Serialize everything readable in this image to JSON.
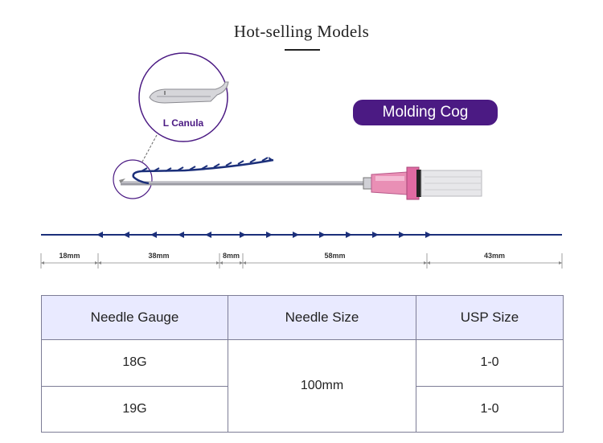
{
  "page": {
    "title": "Hot-selling Models",
    "badge": "Molding Cog",
    "zoom_label": "L Canula"
  },
  "dimensions": [
    "18mm",
    "38mm",
    "8mm",
    "58mm",
    "43mm"
  ],
  "colors": {
    "thread": "#1b2f7a",
    "badge": "#4b1a83",
    "header_bg": "#e9eaff",
    "hub": "#e98fb5"
  },
  "table": {
    "headers": [
      "Needle Gauge",
      "Needle Size",
      "USP Size"
    ],
    "rows": [
      {
        "gauge": "18G",
        "size": "100mm",
        "usp": "1-0"
      },
      {
        "gauge": "19G",
        "size": "100mm",
        "usp": "1-0"
      }
    ]
  }
}
